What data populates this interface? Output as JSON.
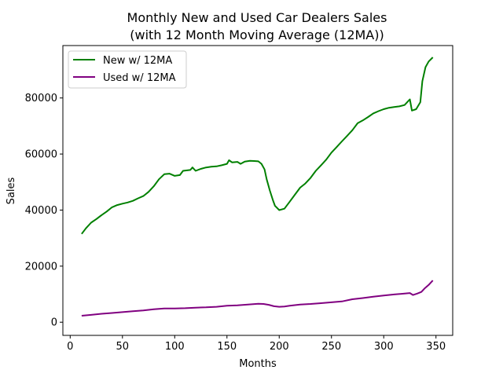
{
  "chart_data": {
    "type": "line",
    "title_line1": "Monthly New and Used Car Dealers Sales",
    "title_line2": "(with 12 Month Moving Average (12MA))",
    "xlabel": "Months",
    "ylabel": "Sales",
    "xlim": [
      -7,
      366
    ],
    "ylim": [
      -4700,
      98700
    ],
    "xticks": [
      0,
      50,
      100,
      150,
      200,
      250,
      300,
      350
    ],
    "yticks": [
      0,
      20000,
      40000,
      60000,
      80000
    ],
    "grid": false,
    "legend_position": "upper-left",
    "series": [
      {
        "name": "New w/ 12MA",
        "color": "#008000",
        "points": [
          [
            11,
            31500
          ],
          [
            15,
            33500
          ],
          [
            20,
            35500
          ],
          [
            25,
            36800
          ],
          [
            30,
            38200
          ],
          [
            35,
            39500
          ],
          [
            40,
            41000
          ],
          [
            45,
            41800
          ],
          [
            50,
            42300
          ],
          [
            55,
            42700
          ],
          [
            60,
            43300
          ],
          [
            65,
            44200
          ],
          [
            70,
            45000
          ],
          [
            75,
            46500
          ],
          [
            80,
            48500
          ],
          [
            85,
            51000
          ],
          [
            90,
            52800
          ],
          [
            95,
            53000
          ],
          [
            100,
            52200
          ],
          [
            105,
            52500
          ],
          [
            108,
            54000
          ],
          [
            115,
            54300
          ],
          [
            117,
            55200
          ],
          [
            120,
            54000
          ],
          [
            125,
            54700
          ],
          [
            130,
            55200
          ],
          [
            135,
            55500
          ],
          [
            140,
            55600
          ],
          [
            145,
            56000
          ],
          [
            150,
            56500
          ],
          [
            152,
            57800
          ],
          [
            155,
            57000
          ],
          [
            160,
            57200
          ],
          [
            163,
            56500
          ],
          [
            167,
            57300
          ],
          [
            172,
            57600
          ],
          [
            176,
            57500
          ],
          [
            180,
            57400
          ],
          [
            183,
            56500
          ],
          [
            186,
            54500
          ],
          [
            188,
            51000
          ],
          [
            191,
            47000
          ],
          [
            194,
            43500
          ],
          [
            196,
            41500
          ],
          [
            200,
            40000
          ],
          [
            205,
            40500
          ],
          [
            210,
            43000
          ],
          [
            215,
            45500
          ],
          [
            220,
            48000
          ],
          [
            225,
            49500
          ],
          [
            230,
            51500
          ],
          [
            235,
            54000
          ],
          [
            240,
            56000
          ],
          [
            245,
            58000
          ],
          [
            250,
            60500
          ],
          [
            255,
            62500
          ],
          [
            260,
            64500
          ],
          [
            265,
            66500
          ],
          [
            270,
            68500
          ],
          [
            275,
            71000
          ],
          [
            280,
            72000
          ],
          [
            285,
            73200
          ],
          [
            290,
            74500
          ],
          [
            295,
            75300
          ],
          [
            300,
            76000
          ],
          [
            305,
            76500
          ],
          [
            310,
            76800
          ],
          [
            315,
            77000
          ],
          [
            320,
            77500
          ],
          [
            325,
            79500
          ],
          [
            327,
            75500
          ],
          [
            331,
            76000
          ],
          [
            335,
            78500
          ],
          [
            337,
            86000
          ],
          [
            340,
            91000
          ],
          [
            343,
            93000
          ],
          [
            347,
            94500
          ]
        ]
      },
      {
        "name": "Used w/ 12MA",
        "color": "#800080",
        "points": [
          [
            11,
            2300
          ],
          [
            20,
            2600
          ],
          [
            30,
            3000
          ],
          [
            40,
            3300
          ],
          [
            50,
            3600
          ],
          [
            60,
            3900
          ],
          [
            70,
            4200
          ],
          [
            80,
            4600
          ],
          [
            90,
            4900
          ],
          [
            100,
            4900
          ],
          [
            110,
            5000
          ],
          [
            120,
            5200
          ],
          [
            130,
            5300
          ],
          [
            140,
            5500
          ],
          [
            150,
            5900
          ],
          [
            160,
            6000
          ],
          [
            170,
            6300
          ],
          [
            180,
            6600
          ],
          [
            185,
            6500
          ],
          [
            190,
            6200
          ],
          [
            195,
            5700
          ],
          [
            200,
            5500
          ],
          [
            205,
            5600
          ],
          [
            210,
            5900
          ],
          [
            220,
            6300
          ],
          [
            230,
            6500
          ],
          [
            240,
            6800
          ],
          [
            250,
            7100
          ],
          [
            260,
            7400
          ],
          [
            270,
            8200
          ],
          [
            280,
            8600
          ],
          [
            290,
            9100
          ],
          [
            300,
            9500
          ],
          [
            310,
            9900
          ],
          [
            320,
            10200
          ],
          [
            325,
            10400
          ],
          [
            328,
            9700
          ],
          [
            332,
            10200
          ],
          [
            336,
            10800
          ],
          [
            339,
            12000
          ],
          [
            343,
            13300
          ],
          [
            347,
            14900
          ]
        ]
      }
    ]
  }
}
